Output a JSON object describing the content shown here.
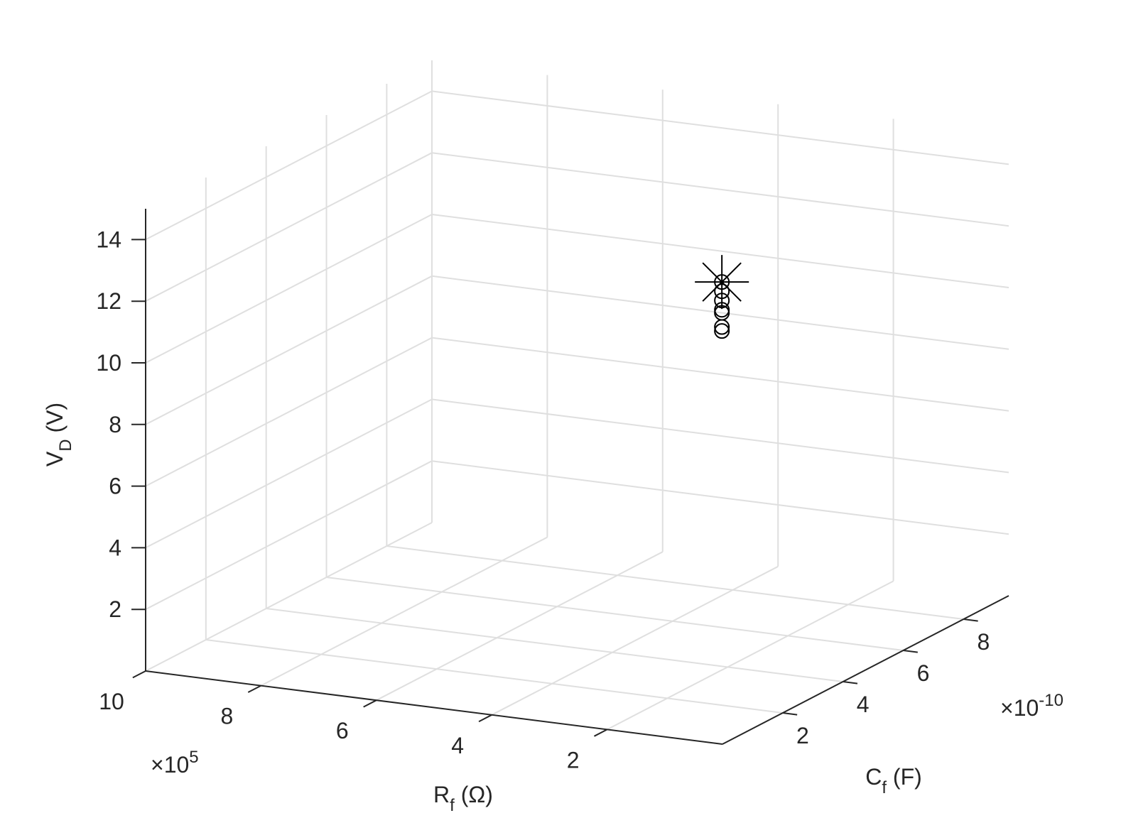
{
  "chart_data": {
    "type": "scatter3d",
    "xlabel": {
      "text": "R",
      "subscript": "f",
      "suffix": " (Ω)"
    },
    "ylabel": {
      "text": "C",
      "subscript": "f",
      "suffix": " (F)"
    },
    "zlabel": {
      "text": "V",
      "subscript": "D",
      "suffix": " (V)"
    },
    "xlim": [
      0,
      1000000
    ],
    "xticks": [
      {
        "value": 200000,
        "label": "2"
      },
      {
        "value": 400000,
        "label": "4"
      },
      {
        "value": 600000,
        "label": "6"
      },
      {
        "value": 800000,
        "label": "8"
      },
      {
        "value": 1000000,
        "label": "10"
      }
    ],
    "x_multiplier": {
      "base": "×10",
      "exponent": "5"
    },
    "ylim": [
      0,
      9.5e-10
    ],
    "yticks": [
      {
        "value": 2e-10,
        "label": "2"
      },
      {
        "value": 4e-10,
        "label": "4"
      },
      {
        "value": 6e-10,
        "label": "6"
      },
      {
        "value": 8e-10,
        "label": "8"
      }
    ],
    "y_multiplier": {
      "base": "×10",
      "exponent": "-10"
    },
    "zlim": [
      0,
      15
    ],
    "zticks": [
      2,
      4,
      6,
      8,
      10,
      12,
      14
    ],
    "grid": true,
    "series": [
      {
        "marker": "circle",
        "color": "#000000",
        "x": [
          210000,
          210000,
          210000,
          210000,
          210000,
          210000,
          210000
        ],
        "y": [
          4e-10,
          4e-10,
          4e-10,
          4e-10,
          4e-10,
          4e-10,
          4e-10
        ],
        "z": [
          12.47,
          12.17,
          11.87,
          11.57,
          11.47,
          11.01,
          10.88
        ]
      },
      {
        "marker": "star",
        "color": "#000000",
        "x": [
          210000
        ],
        "y": [
          4e-10
        ],
        "z": [
          12.47
        ]
      }
    ]
  }
}
